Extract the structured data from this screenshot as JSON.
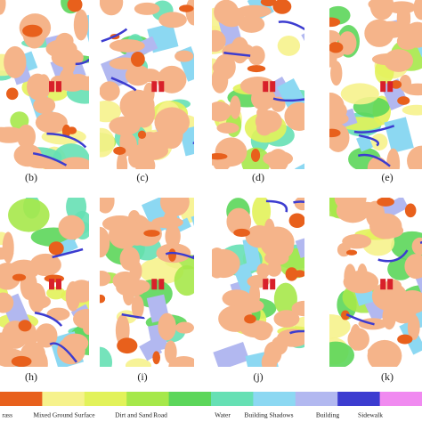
{
  "panels": [
    {
      "label": "(b)"
    },
    {
      "label": "(c)"
    },
    {
      "label": "(d)"
    },
    {
      "label": "(e)"
    },
    {
      "label": "(h)"
    },
    {
      "label": "(i)"
    },
    {
      "label": "(j)"
    },
    {
      "label": "(k)"
    }
  ],
  "legend": [
    {
      "name": "rass",
      "color": "#e8601c"
    },
    {
      "name": "Mixed Ground Surface",
      "color": "#f6f28c"
    },
    {
      "name": "Dirt and Sand",
      "color": "#e2f25a"
    },
    {
      "name": "Road",
      "color": "#a6e84a"
    },
    {
      "name": null,
      "color": "#5cd65a"
    },
    {
      "name": "Water",
      "color": "#66e0b4"
    },
    {
      "name": "Building Shadows",
      "color": "#8cd8f2"
    },
    {
      "name": "Building",
      "color": "#b2b8f0"
    },
    {
      "name": "Sidewalk",
      "color": "#3c3cd0"
    },
    {
      "name": null,
      "color": "#f08af0"
    }
  ]
}
